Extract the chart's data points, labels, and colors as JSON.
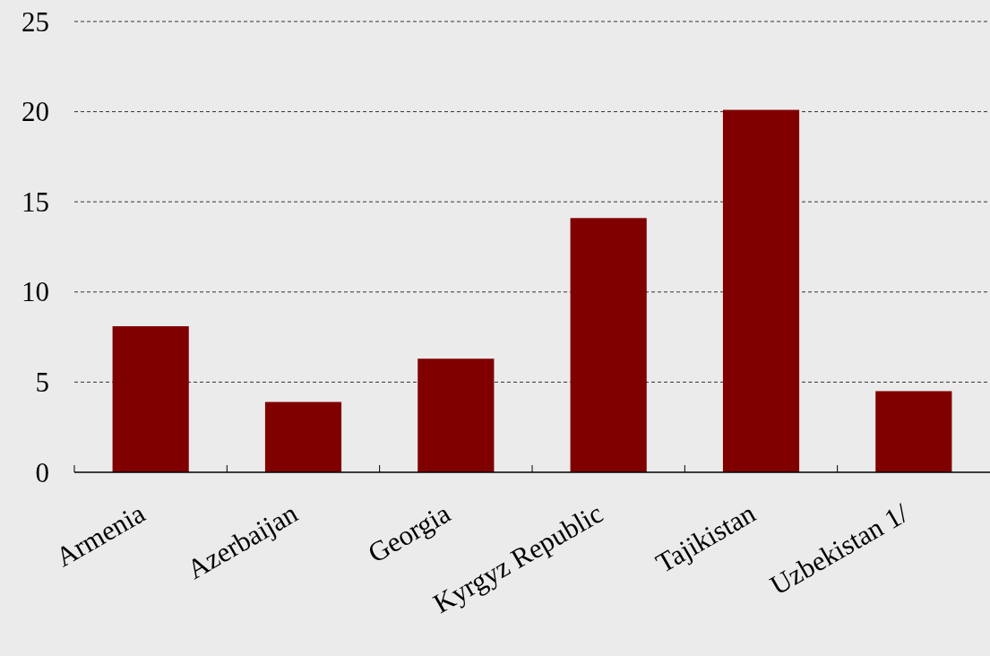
{
  "chart_data": {
    "type": "bar",
    "categories": [
      "Armenia",
      "Azerbaijan",
      "Georgia",
      "Kyrgyz Republic",
      "Tajikistan",
      "Uzbekistan 1/"
    ],
    "values": [
      8.1,
      3.9,
      6.3,
      14.1,
      20.1,
      4.5
    ],
    "color": "#800000",
    "ylim": [
      0,
      25
    ],
    "yticks": [
      0,
      5,
      10,
      15,
      20,
      25
    ],
    "grid": "y"
  }
}
